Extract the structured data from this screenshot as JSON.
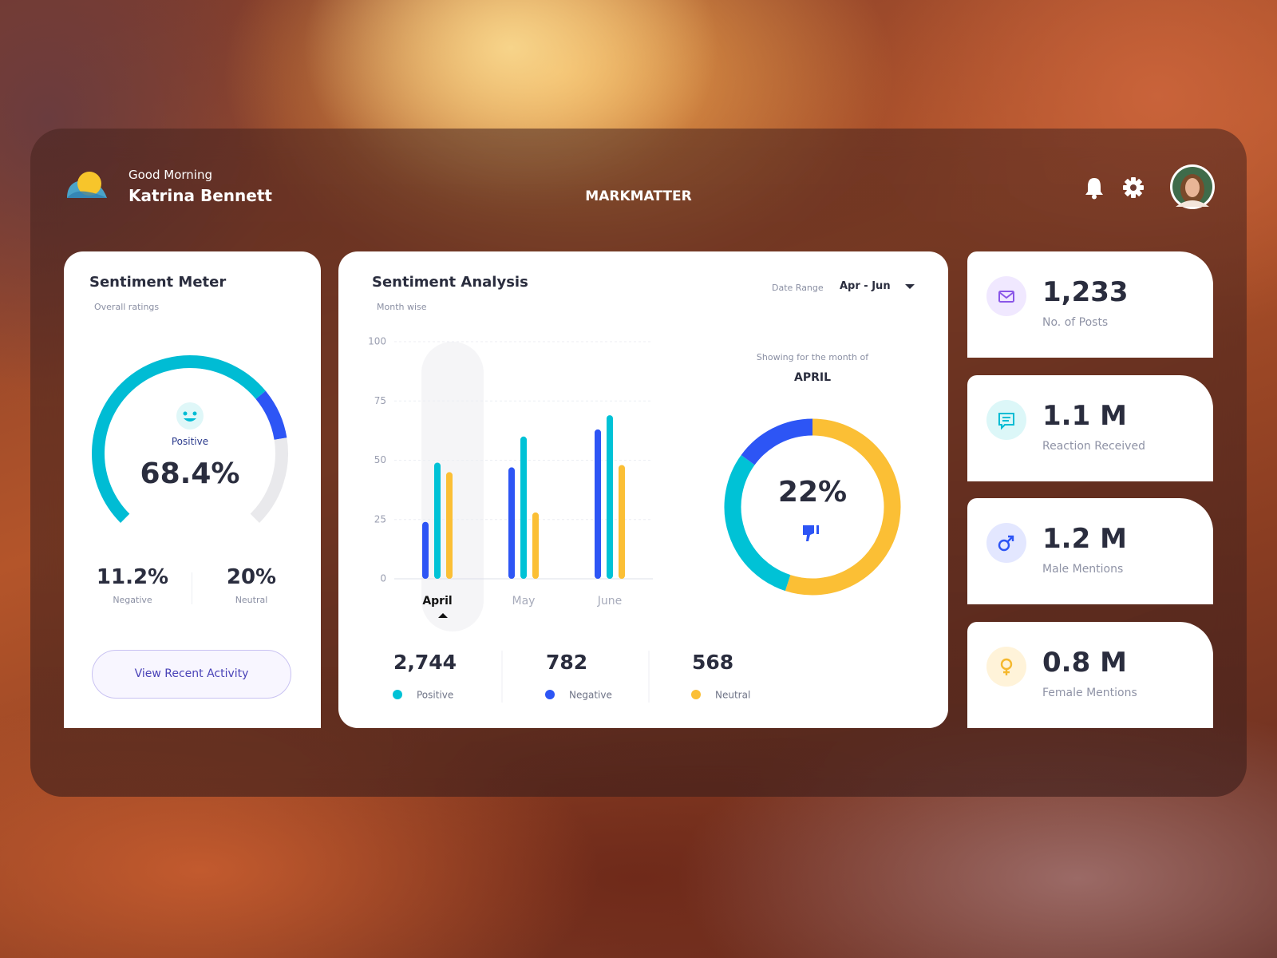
{
  "header": {
    "greeting": "Good Morning",
    "user_name": "Katrina Bennett",
    "brand": "MARKMATTER"
  },
  "sentiment_meter": {
    "title": "Sentiment Meter",
    "subtitle": "Overall ratings",
    "button": "View Recent Activity"
  },
  "sentiment_analysis": {
    "title": "Sentiment Analysis",
    "subtitle": "Month wise",
    "date_range_label": "Date Range",
    "date_range": "Apr - Jun"
  },
  "chart_data": [
    {
      "type": "gauge",
      "categories": [
        "Positive",
        "Negative",
        "Neutral"
      ],
      "values": [
        68.4,
        11.2,
        20
      ],
      "value_labels": [
        "68.4%",
        "11.2%",
        "20%"
      ],
      "colors": [
        "#00bcd4",
        "#2d55f5",
        "#e9e9ec"
      ]
    },
    {
      "type": "bar",
      "categories": [
        "April",
        "May",
        "June"
      ],
      "series": [
        {
          "name": "Positive",
          "color": "#00c2d6",
          "values": [
            49,
            60,
            69
          ],
          "total": "2,744"
        },
        {
          "name": "Negative",
          "color": "#2d55f5",
          "values": [
            24,
            47,
            63
          ],
          "total": "782"
        },
        {
          "name": "Neutral",
          "color": "#fbbf35",
          "values": [
            45,
            28,
            48
          ],
          "total": "568"
        }
      ],
      "ylim": [
        0,
        100
      ],
      "yticks": [
        0,
        25,
        50,
        75,
        100
      ],
      "grid": true
    },
    {
      "type": "donut",
      "caption": "Showing for the month of",
      "month": "APRIL",
      "center_label": "22%",
      "values": [
        55,
        30,
        15
      ],
      "colors": [
        "#fbbf35",
        "#00c2d6",
        "#2d55f5"
      ]
    }
  ],
  "stats": [
    {
      "value": "1,233",
      "label": "No. of Posts"
    },
    {
      "value": "1.1 M",
      "label": "Reaction Received"
    },
    {
      "value": "1.2 M",
      "label": "Male Mentions"
    },
    {
      "value": "0.8 M",
      "label": "Female Mentions"
    }
  ]
}
